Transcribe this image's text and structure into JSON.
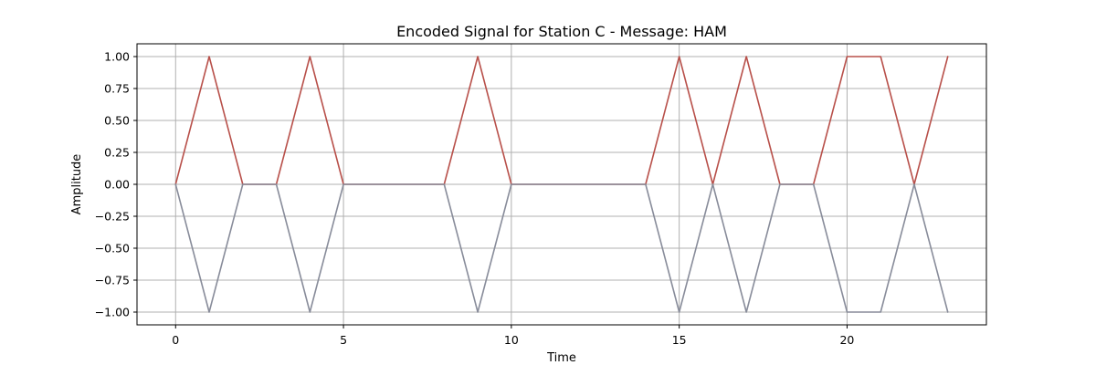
{
  "chart_data": {
    "type": "line",
    "title": "Encoded Signal for Station C - Message: HAM",
    "xlabel": "Time",
    "ylabel": "Amplitude",
    "xlim": [
      -1.15,
      24.15
    ],
    "ylim": [
      -1.1,
      1.1
    ],
    "xticks": [
      0,
      5,
      10,
      15,
      20
    ],
    "xtick_labels": [
      "0",
      "5",
      "10",
      "15",
      "20"
    ],
    "yticks": [
      1.0,
      0.75,
      0.5,
      0.25,
      0.0,
      -0.25,
      -0.5,
      -0.75,
      -1.0
    ],
    "ytick_labels": [
      "1.00",
      "0.75",
      "0.50",
      "0.25",
      "0.00",
      "−0.25",
      "−0.50",
      "−0.75",
      "−1.00"
    ],
    "grid": true,
    "legend": "none",
    "x": [
      0,
      1,
      2,
      3,
      4,
      5,
      6,
      7,
      8,
      9,
      10,
      11,
      12,
      13,
      14,
      15,
      16,
      17,
      18,
      19,
      20,
      21,
      22,
      23
    ],
    "series": [
      {
        "color": "#b8504a",
        "values": [
          0,
          1,
          0,
          0,
          1,
          0,
          0,
          0,
          0,
          1,
          0,
          0,
          0,
          0,
          0,
          1,
          0,
          1,
          0,
          0,
          1,
          1,
          0,
          1
        ]
      },
      {
        "color": "#888c9a",
        "values": [
          0,
          -1,
          0,
          0,
          -1,
          0,
          0,
          0,
          0,
          -1,
          0,
          0,
          0,
          0,
          0,
          -1,
          0,
          -1,
          0,
          0,
          -1,
          -1,
          0,
          -1
        ]
      }
    ]
  }
}
